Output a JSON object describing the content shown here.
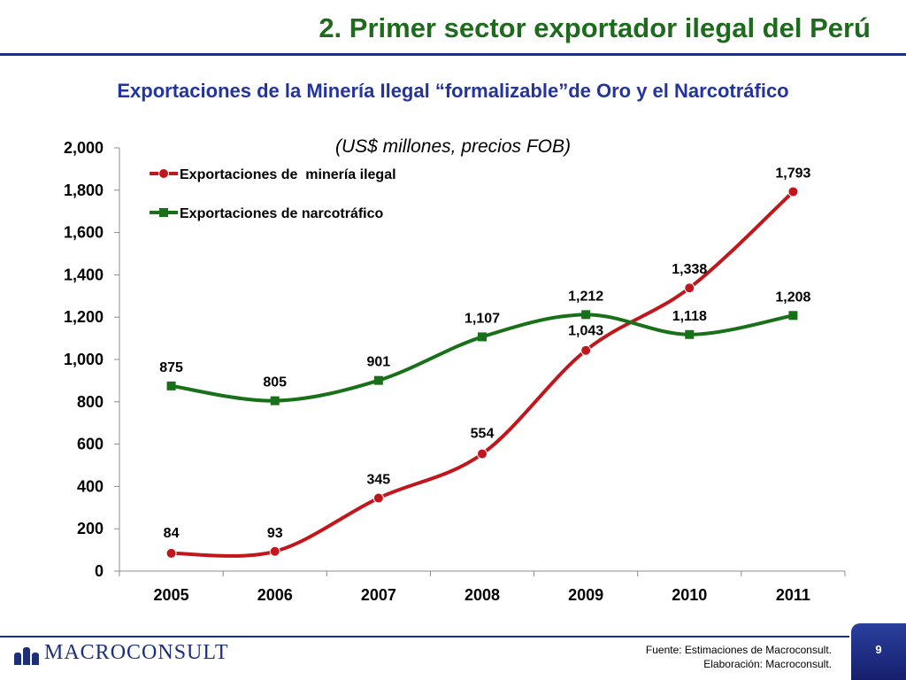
{
  "slide": {
    "title": "2. Primer sector exportador ilegal del Perú",
    "page_number": "9",
    "logo_text": "MACROCONSULT",
    "source_line1": "Fuente: Estimaciones de Macroconsult.",
    "source_line2": "Elaboración: Macroconsult."
  },
  "chart_data": {
    "type": "line",
    "title": "Exportaciones de la Minería Ilegal “formalizable”de Oro y  el Narcotráfico",
    "subtitle": "(US$ millones, precios FOB)",
    "xlabel": "",
    "ylabel": "",
    "categories": [
      "2005",
      "2006",
      "2007",
      "2008",
      "2009",
      "2010",
      "2011"
    ],
    "ylim": [
      0,
      2000
    ],
    "yticks": [
      0,
      200,
      400,
      600,
      800,
      1000,
      1200,
      1400,
      1600,
      1800,
      2000
    ],
    "ytick_labels": [
      "0",
      "200",
      "400",
      "600",
      "800",
      "1,000",
      "1,200",
      "1,400",
      "1,600",
      "1,800",
      "2,000"
    ],
    "grid": false,
    "legend_position": "top-left",
    "series": [
      {
        "name": "Exportaciones de  minería ilegal",
        "values": [
          84,
          93,
          345,
          554,
          1043,
          1338,
          1793
        ],
        "labels": [
          "84",
          "93",
          "345",
          "554",
          "1,043",
          "1,338",
          "1,793"
        ],
        "color": "#c0161c",
        "marker": "circle"
      },
      {
        "name": "Exportaciones de narcotráfico",
        "values": [
          875,
          805,
          901,
          1107,
          1212,
          1118,
          1208
        ],
        "labels": [
          "875",
          "805",
          "901",
          "1,107",
          "1,212",
          "1,118",
          "1,208"
        ],
        "color": "#187118",
        "marker": "square"
      }
    ]
  }
}
